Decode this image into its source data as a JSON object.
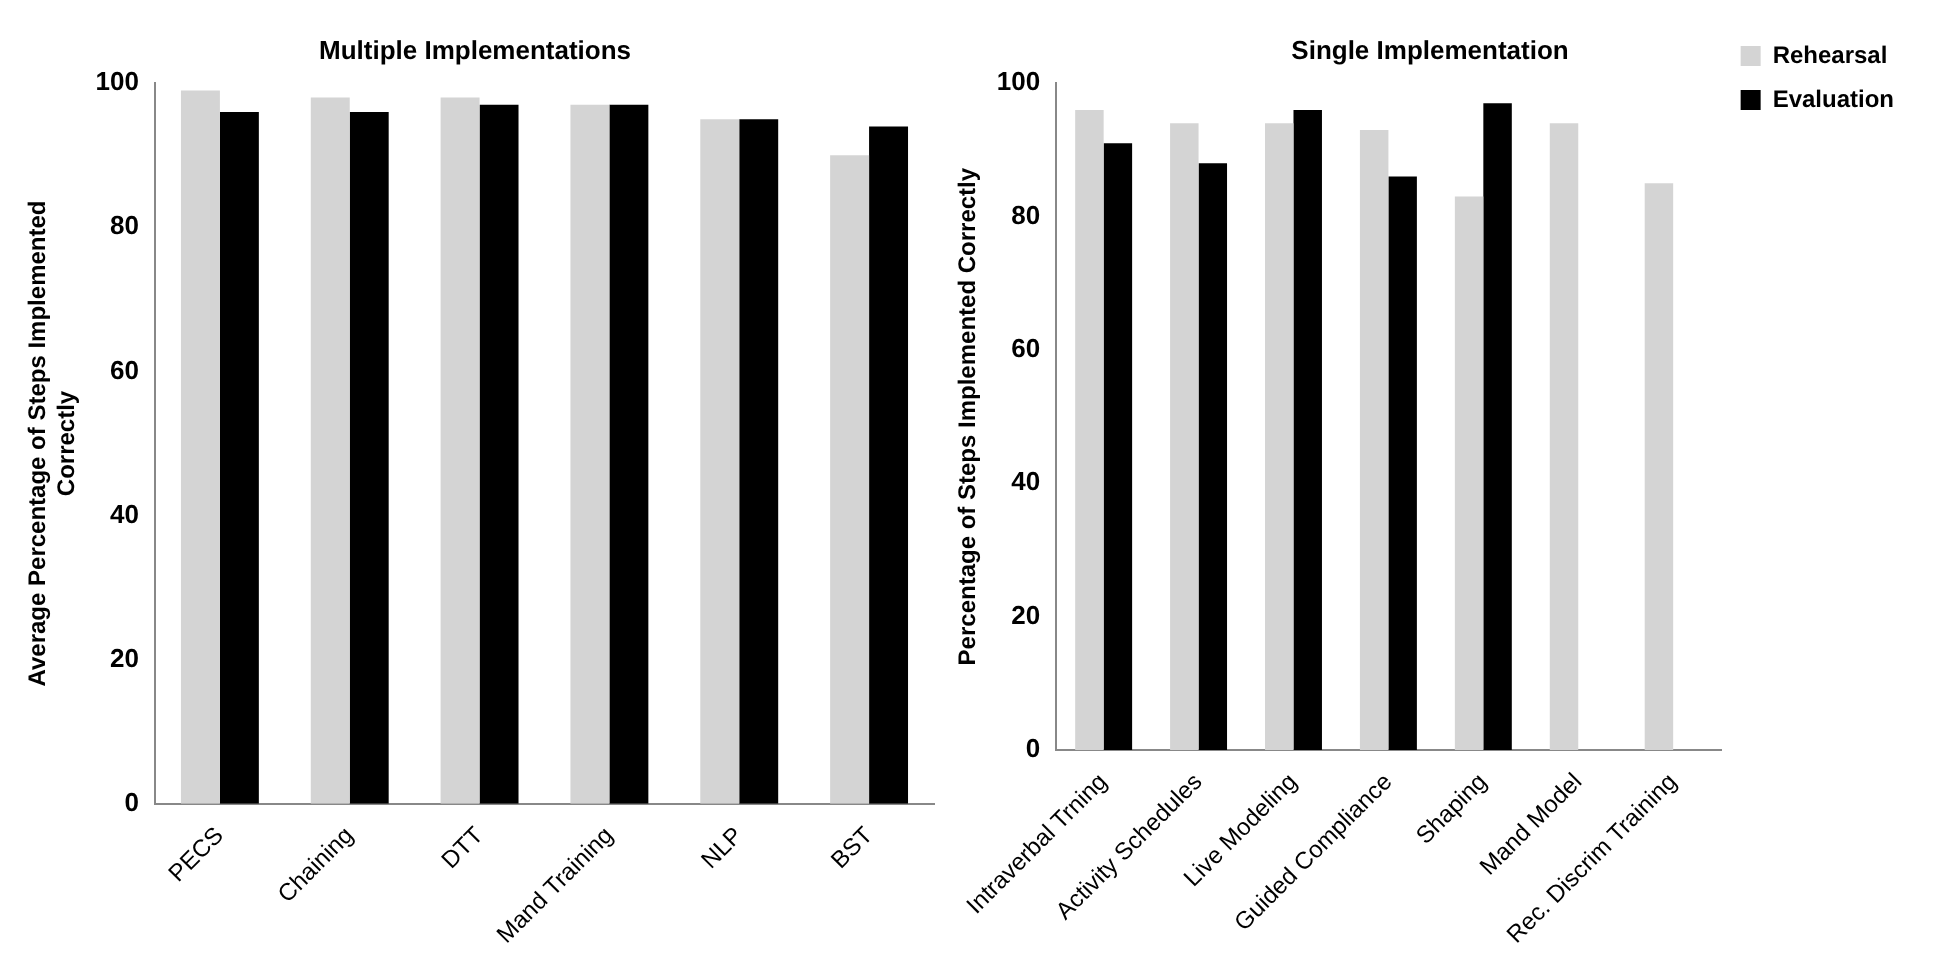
{
  "chart_data": [
    {
      "type": "bar",
      "title": "Multiple Implementations",
      "ylabel": "Average Percentage of Steps Implemented Correctly",
      "categories": [
        "PECS",
        "Chaining",
        "DTT",
        "Mand Training",
        "NLP",
        "BST"
      ],
      "series": [
        {
          "color": "#d4d4d4",
          "values": [
            99,
            98,
            98,
            97,
            95,
            90
          ]
        },
        {
          "color": "#000000",
          "values": [
            96,
            96,
            97,
            97,
            95,
            94
          ]
        }
      ],
      "ylim": [
        0,
        100
      ],
      "yticks": [
        0,
        20,
        40,
        60,
        80,
        100
      ],
      "grid": false,
      "legend": false
    },
    {
      "type": "bar",
      "title": "Single Implementation",
      "ylabel": "Percentage of Steps Implemented Correctly",
      "categories": [
        "Intraverbal Trning",
        "Activity Schedules",
        "Live Modeling",
        "Guided Compliance",
        "Shaping",
        "Mand Model",
        "Rec. Discrim Training"
      ],
      "series": [
        {
          "name": "Rehearsal",
          "color": "#d4d4d4",
          "values": [
            96,
            94,
            94,
            93,
            83,
            94,
            85
          ]
        },
        {
          "name": "Evaluation",
          "color": "#000000",
          "values": [
            91,
            88,
            96,
            86,
            97,
            null,
            null
          ]
        }
      ],
      "ylim": [
        0,
        100
      ],
      "yticks": [
        0,
        20,
        40,
        60,
        80,
        100
      ],
      "grid": false,
      "legend": "top right"
    }
  ]
}
